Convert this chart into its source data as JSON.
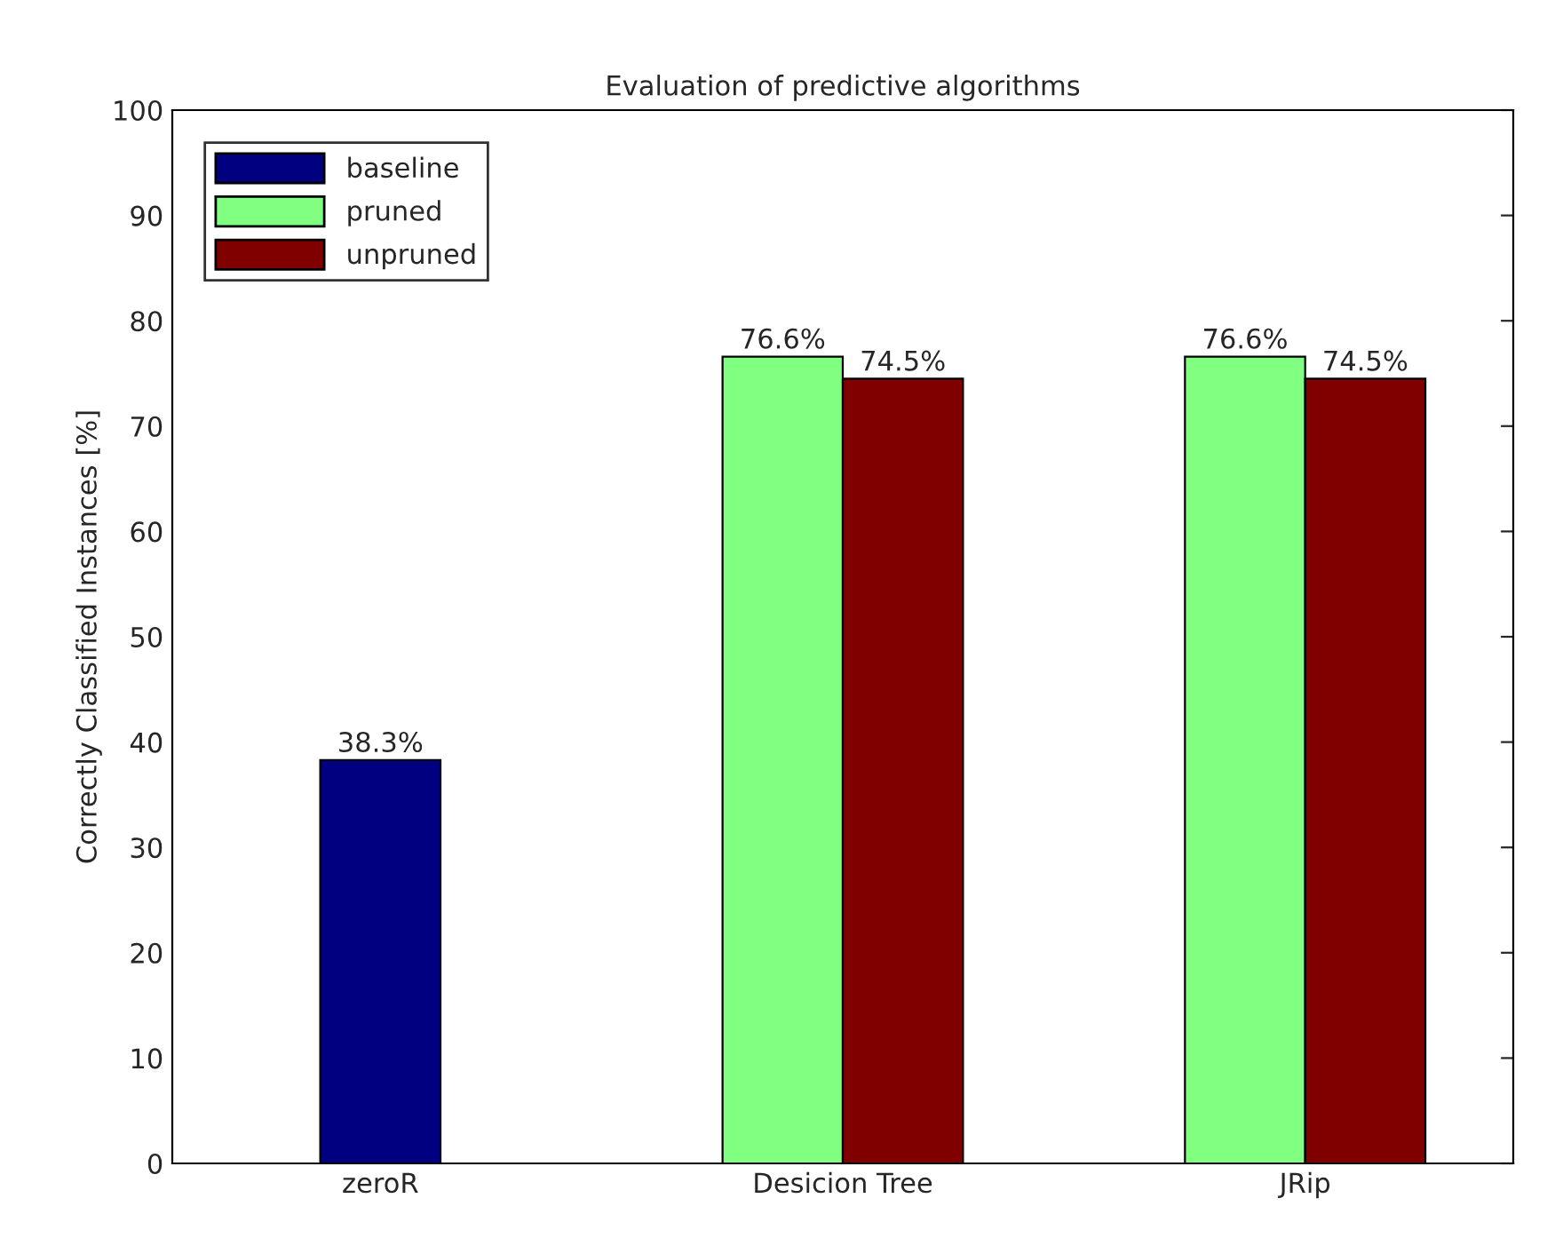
{
  "chart_data": {
    "type": "bar",
    "title": "Evaluation of predictive algorithms",
    "ylabel": "Correctly Classified Instances [%]",
    "categories": [
      "zeroR",
      "Desicion Tree",
      "JRip"
    ],
    "series": [
      {
        "name": "baseline",
        "color": "#000080",
        "values": [
          38.3,
          null,
          null
        ],
        "value_labels": [
          "38.3%",
          null,
          null
        ]
      },
      {
        "name": "pruned",
        "color": "#80ff80",
        "values": [
          null,
          76.6,
          76.6
        ],
        "value_labels": [
          null,
          "76.6%",
          "76.6%"
        ]
      },
      {
        "name": "unpruned",
        "color": "#800000",
        "values": [
          null,
          74.5,
          74.5
        ],
        "value_labels": [
          null,
          "74.5%",
          "74.5%"
        ]
      }
    ],
    "ylim": [
      0,
      100
    ],
    "yticks": [
      0,
      10,
      20,
      30,
      40,
      50,
      60,
      70,
      80,
      90,
      100
    ],
    "grid": false,
    "legend": "top left"
  }
}
